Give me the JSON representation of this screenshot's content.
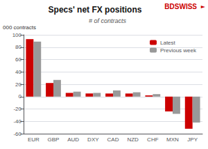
{
  "chart_data": {
    "type": "bar",
    "title": "Specs' net FX positions",
    "subtitle": "# of contracts",
    "ylabel": "000 contracts",
    "annotations": [
      {
        "text": "BDSWISS",
        "color": "#cc0000"
      },
      {
        "text": "►",
        "color": "#cc0000"
      }
    ],
    "categories": [
      "EUR",
      "GBP",
      "AUD",
      "DXY",
      "CAD",
      "NZD",
      "CHF",
      "MXN",
      "JPY"
    ],
    "series": [
      {
        "name": "Latest",
        "color": "#cc0000",
        "values": [
          93,
          22,
          6,
          5,
          5,
          5,
          2,
          -24,
          -52
        ]
      },
      {
        "name": "Previous week",
        "color": "#999999",
        "values": [
          89,
          27,
          8,
          6,
          10,
          7,
          4,
          -28,
          -42
        ]
      }
    ],
    "ylim": [
      -60,
      100
    ],
    "yticks": [
      -60,
      -40,
      -20,
      0,
      20,
      40,
      60,
      80,
      100
    ],
    "grid": true,
    "legend": "upper right"
  }
}
